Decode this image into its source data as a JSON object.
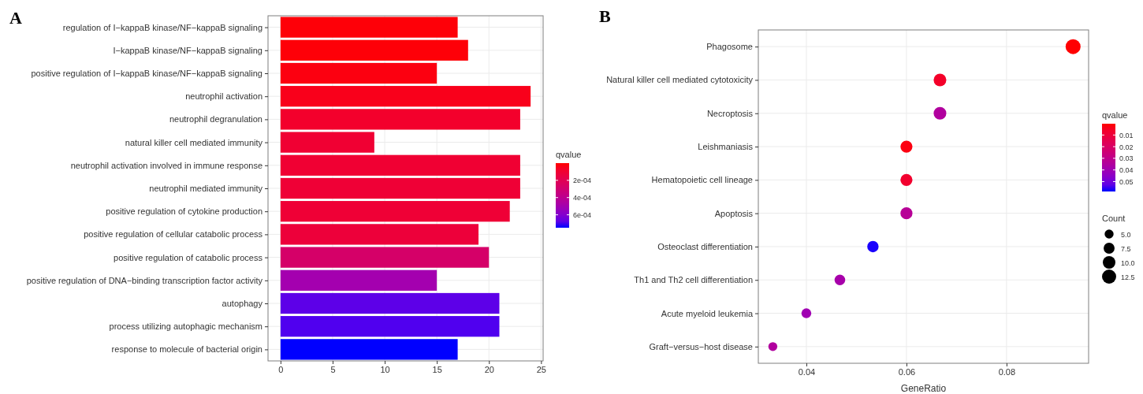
{
  "chart_data": [
    {
      "type": "bar",
      "title": "A",
      "orientation": "horizontal",
      "categories": [
        "regulation of I−kappaB kinase/NF−kappaB signaling",
        "I−kappaB kinase/NF−kappaB signaling",
        "positive regulation of I−kappaB kinase/NF−kappaB signaling",
        "neutrophil activation",
        "neutrophil degranulation",
        "natural killer cell mediated immunity",
        "neutrophil activation involved in immune response",
        "neutrophil mediated immunity",
        "positive regulation of cytokine production",
        "positive regulation of cellular catabolic process",
        "positive regulation of catabolic process",
        "positive regulation of DNA−binding transcription factor activity",
        "autophagy",
        "process utilizing autophagic mechanism",
        "response to molecule of bacterial origin"
      ],
      "values": [
        17,
        18,
        15,
        24,
        23,
        9,
        23,
        23,
        22,
        19,
        20,
        15,
        21,
        21,
        17
      ],
      "cvalues": [
        1e-05,
        1e-05,
        2e-05,
        4e-05,
        8e-05,
        0.0001,
        0.0001,
        0.00011,
        0.00011,
        0.00012,
        0.00027,
        0.0005,
        0.00068,
        0.0007,
        0.00075
      ],
      "clabel": "qvalue",
      "clim": [
        0,
        0.00075
      ],
      "cticks": [
        {
          "value": 0.0002,
          "label": "2e-04"
        },
        {
          "value": 0.0004,
          "label": "4e-04"
        },
        {
          "value": 0.0006,
          "label": "6e-04"
        }
      ],
      "xlim": [
        -1.2,
        25.2
      ],
      "xticks": [
        0,
        5,
        10,
        15,
        20,
        25
      ],
      "grid": true
    },
    {
      "type": "bubble",
      "title": "B",
      "orientation": "horizontal",
      "xlabel": "GeneRatio",
      "categories": [
        "Phagosome",
        "Natural killer cell mediated cytotoxicity",
        "Necroptosis",
        "Leishmaniasis",
        "Hematopoietic cell lineage",
        "Apoptosis",
        "Osteoclast differentiation",
        "Th1 and Th2 cell differentiation",
        "Acute myeloid leukemia",
        "Graft−versus−host disease"
      ],
      "values": [
        0.0933,
        0.0667,
        0.0667,
        0.06,
        0.06,
        0.06,
        0.0533,
        0.0467,
        0.04,
        0.0333
      ],
      "sizes": [
        14,
        10,
        10,
        9,
        9,
        9,
        8,
        7,
        6,
        5
      ],
      "size_legend": [
        {
          "value": 5,
          "label": "5.0"
        },
        7.5,
        {
          "value": 10,
          "label": "10.0"
        },
        12.5
      ],
      "legend_title": "Count",
      "cvalues": [
        0.0005,
        0.006,
        0.035,
        0.002,
        0.007,
        0.033,
        0.058,
        0.038,
        0.04,
        0.035
      ],
      "clabel": "qvalue",
      "clim": [
        0.0003,
        0.0585
      ],
      "cticks": [
        0.01,
        0.02,
        0.03,
        0.04,
        0.05
      ],
      "xlim": [
        0.0304,
        0.0964
      ],
      "xticks": [
        0.04,
        0.06,
        0.08
      ],
      "grid": true
    }
  ]
}
